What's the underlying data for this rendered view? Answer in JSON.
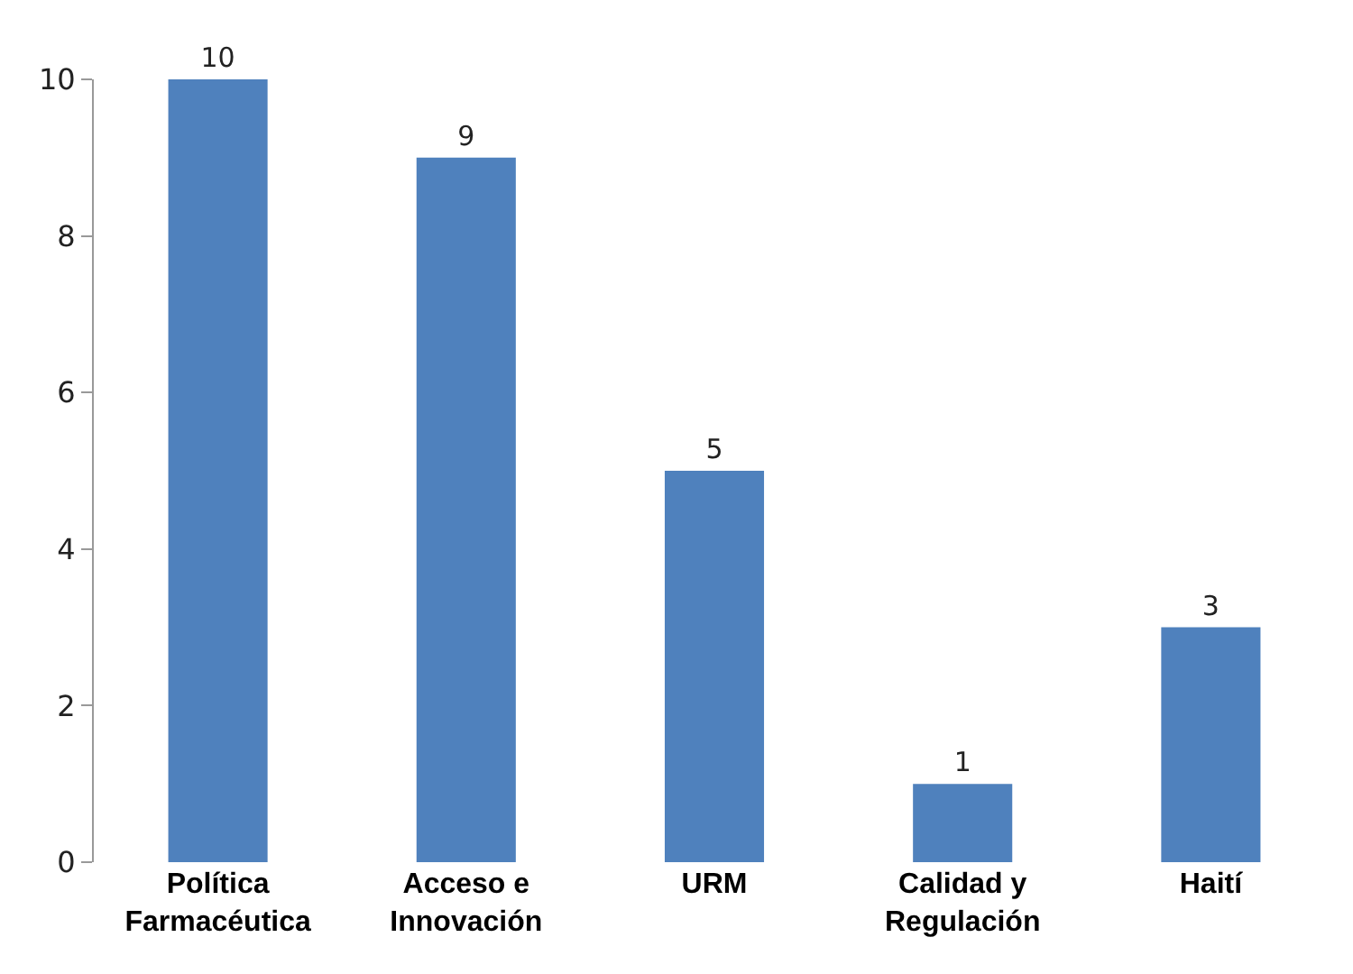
{
  "chart_data": {
    "type": "bar",
    "categories": [
      "Política\nFarmacéutica",
      "Acceso e\nInnovación",
      "URM",
      "Calidad y\nRegulación",
      "Haití"
    ],
    "values": [
      10,
      9,
      5,
      1,
      3
    ],
    "color": "#4f81bd",
    "ylim": [
      0,
      10
    ],
    "yticks": [
      0,
      2,
      4,
      6,
      8,
      10
    ],
    "data_labels": true
  }
}
